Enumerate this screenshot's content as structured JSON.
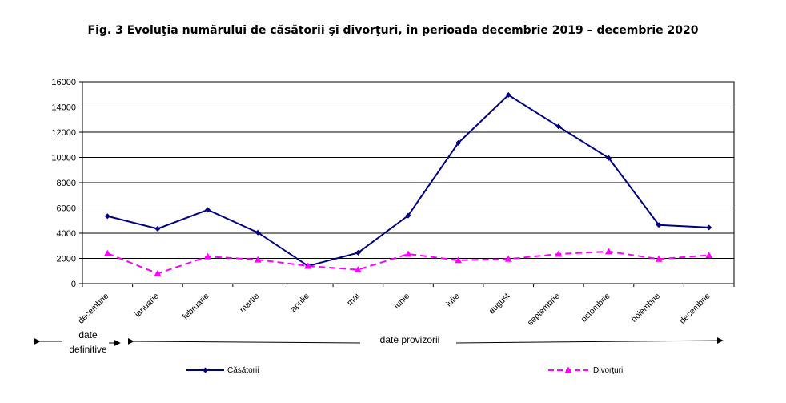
{
  "title": "Fig. 3 Evoluţia numărului de căsătorii şi divorţuri, în perioada decembrie 2019 – decembrie 2020",
  "chart_data": {
    "type": "line",
    "categories": [
      "decembrie",
      "ianuarie",
      "februarie",
      "martie",
      "aprilie",
      "mai",
      "iunie",
      "iulie",
      "august",
      "septembrie",
      "octombrie",
      "noiembrie",
      "decembrie"
    ],
    "ylim": [
      0,
      16000
    ],
    "yticks": [
      0,
      2000,
      4000,
      6000,
      8000,
      10000,
      12000,
      14000,
      16000
    ],
    "grid": true,
    "legend_position": "bottom",
    "series": [
      {
        "name": "Căsătorii",
        "color": "#000080",
        "style": "solid",
        "marker": "diamond",
        "values": [
          5350,
          4350,
          5850,
          4050,
          1400,
          2450,
          5400,
          11150,
          14950,
          12450,
          9950,
          4650,
          4450
        ]
      },
      {
        "name": "Divorţuri",
        "color": "#FF00FF",
        "style": "dashed",
        "marker": "triangle",
        "values": [
          2400,
          800,
          2150,
          1900,
          1400,
          1100,
          2350,
          1850,
          1950,
          2350,
          2550,
          1950,
          2250
        ]
      }
    ],
    "annotations": {
      "definitive": "date definitive",
      "definitive_line1": "date",
      "definitive_line2": "definitive",
      "provisional": "date provizorii"
    }
  }
}
